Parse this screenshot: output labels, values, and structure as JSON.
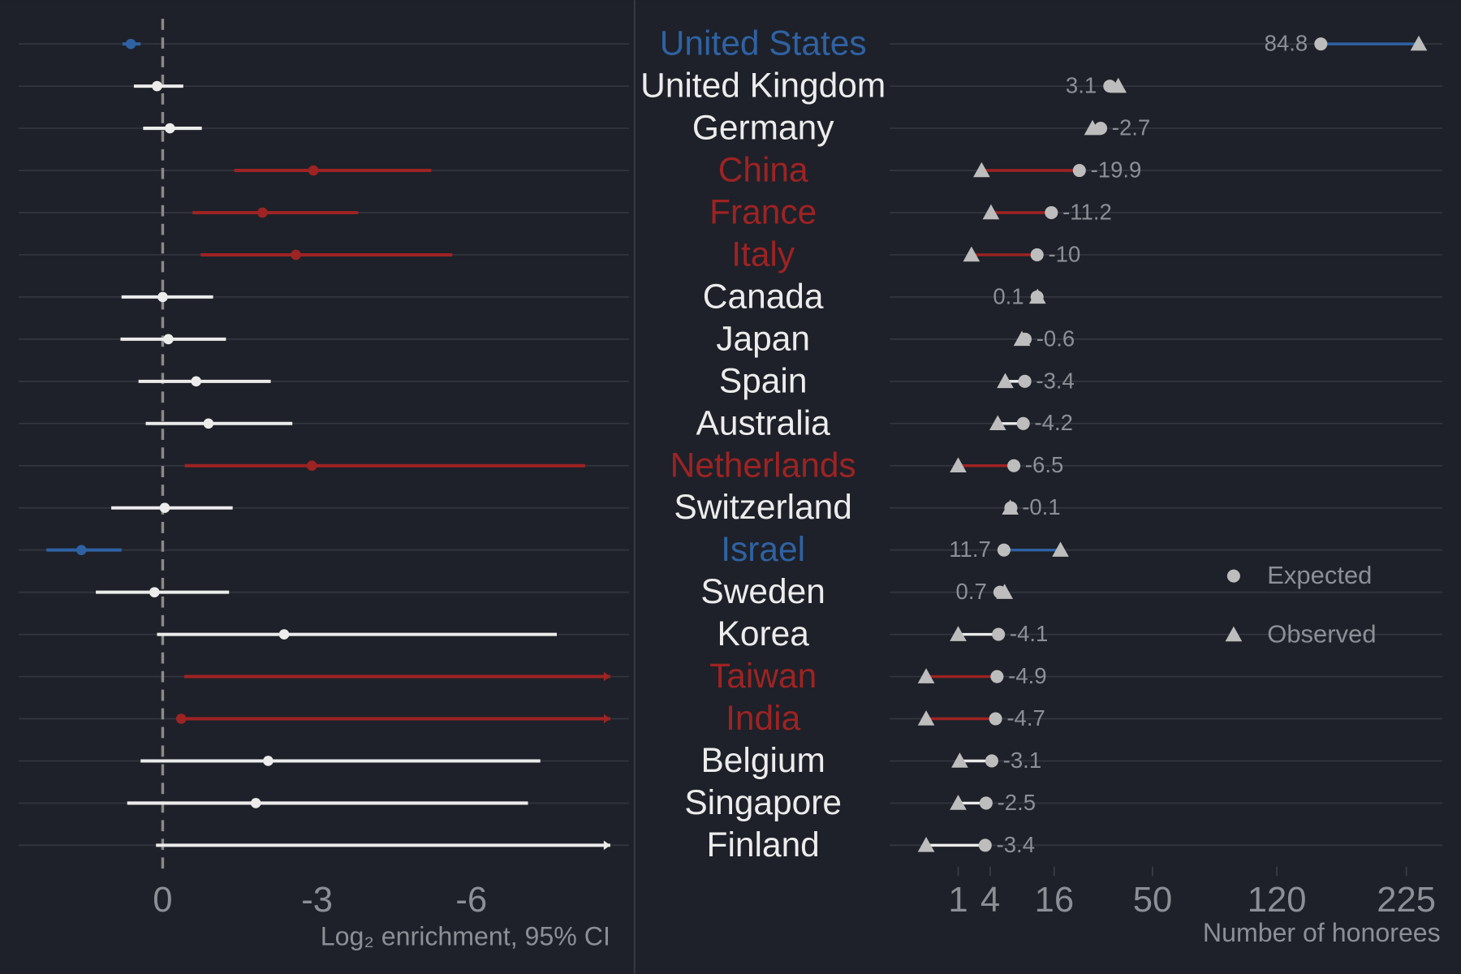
{
  "chart_data": [
    {
      "type": "interval",
      "categories": [
        "United States",
        "United Kingdom",
        "Germany",
        "China",
        "France",
        "Italy",
        "Canada",
        "Japan",
        "Spain",
        "Australia",
        "Netherlands",
        "Switzerland",
        "Israel",
        "Sweden",
        "Korea",
        "Taiwan",
        "India",
        "Belgium",
        "Singapore",
        "Finland"
      ],
      "row_colors": [
        "#2f62a3",
        "#ececec",
        "#ececec",
        "#9e2323",
        "#9e2323",
        "#9e2323",
        "#ececec",
        "#ececec",
        "#ececec",
        "#ececec",
        "#9e2323",
        "#ececec",
        "#2f62a3",
        "#ececec",
        "#ececec",
        "#9e2323",
        "#9e2323",
        "#ececec",
        "#ececec",
        "#ececec"
      ],
      "estimates": [
        0.62,
        0.11,
        -0.14,
        -2.93,
        -1.94,
        -2.59,
        0,
        -0.11,
        -0.65,
        -0.89,
        -2.9,
        -0.04,
        1.58,
        0.16,
        -2.36,
        null,
        -0.36,
        -2.05,
        -1.81,
        null
      ],
      "ci_low": [
        0.43,
        -0.4,
        -0.76,
        -5.22,
        -3.8,
        -5.63,
        -0.98,
        -1.23,
        -2.1,
        -2.52,
        -8.21,
        -1.36,
        0.8,
        -1.29,
        -7.66,
        -8.7,
        -8.7,
        -7.34,
        -7.1,
        -8.7
      ],
      "ci_high": [
        0.78,
        0.56,
        0.38,
        -1.39,
        -0.58,
        -0.74,
        0.8,
        0.82,
        0.47,
        0.33,
        -0.43,
        1.0,
        2.26,
        1.3,
        0.11,
        -0.42,
        -0.36,
        0.43,
        0.69,
        0.13
      ],
      "xlim": [
        2.8,
        -8.7
      ],
      "xticks": [
        0,
        -3,
        -6
      ],
      "reference_line": 0,
      "xlabel": "Log₂ enrichment, 95% CI"
    },
    {
      "type": "dumbbell",
      "series": [
        {
          "name": "Expected",
          "marker": "circle",
          "color": "#bdbdbd",
          "values": [
            152,
            32.9,
            29.7,
            22.9,
            15.3,
            12.0,
            12.0,
            9.55,
            9.5,
            9.2,
            7.5,
            7.0,
            5.9,
            5.3,
            5.1,
            4.9,
            4.7,
            4.2,
            3.5,
            3.4
          ]
        },
        {
          "name": "Observed",
          "marker": "triangle",
          "color": "#bdbdbd",
          "values": [
            236.8,
            36.0,
            27.0,
            3.0,
            4.1,
            2.0,
            12.1,
            8.95,
            6.1,
            5.0,
            1.0,
            6.9,
            17.6,
            6.0,
            1.0,
            0,
            0,
            1.1,
            1.0,
            0
          ]
        }
      ],
      "differences": [
        84.8,
        3.1,
        -2.7,
        -19.9,
        -11.2,
        -10,
        0.1,
        -0.6,
        -3.4,
        -4.2,
        -6.5,
        -0.1,
        11.7,
        0.7,
        -4.1,
        -4.9,
        -4.7,
        -3.1,
        -2.5,
        -3.4
      ],
      "xlim": [
        0,
        260
      ],
      "xticks": [
        1,
        4,
        16,
        50,
        120,
        225
      ],
      "xscale": "sqrt",
      "xlabel": "Number of honorees",
      "legend": "right"
    }
  ]
}
